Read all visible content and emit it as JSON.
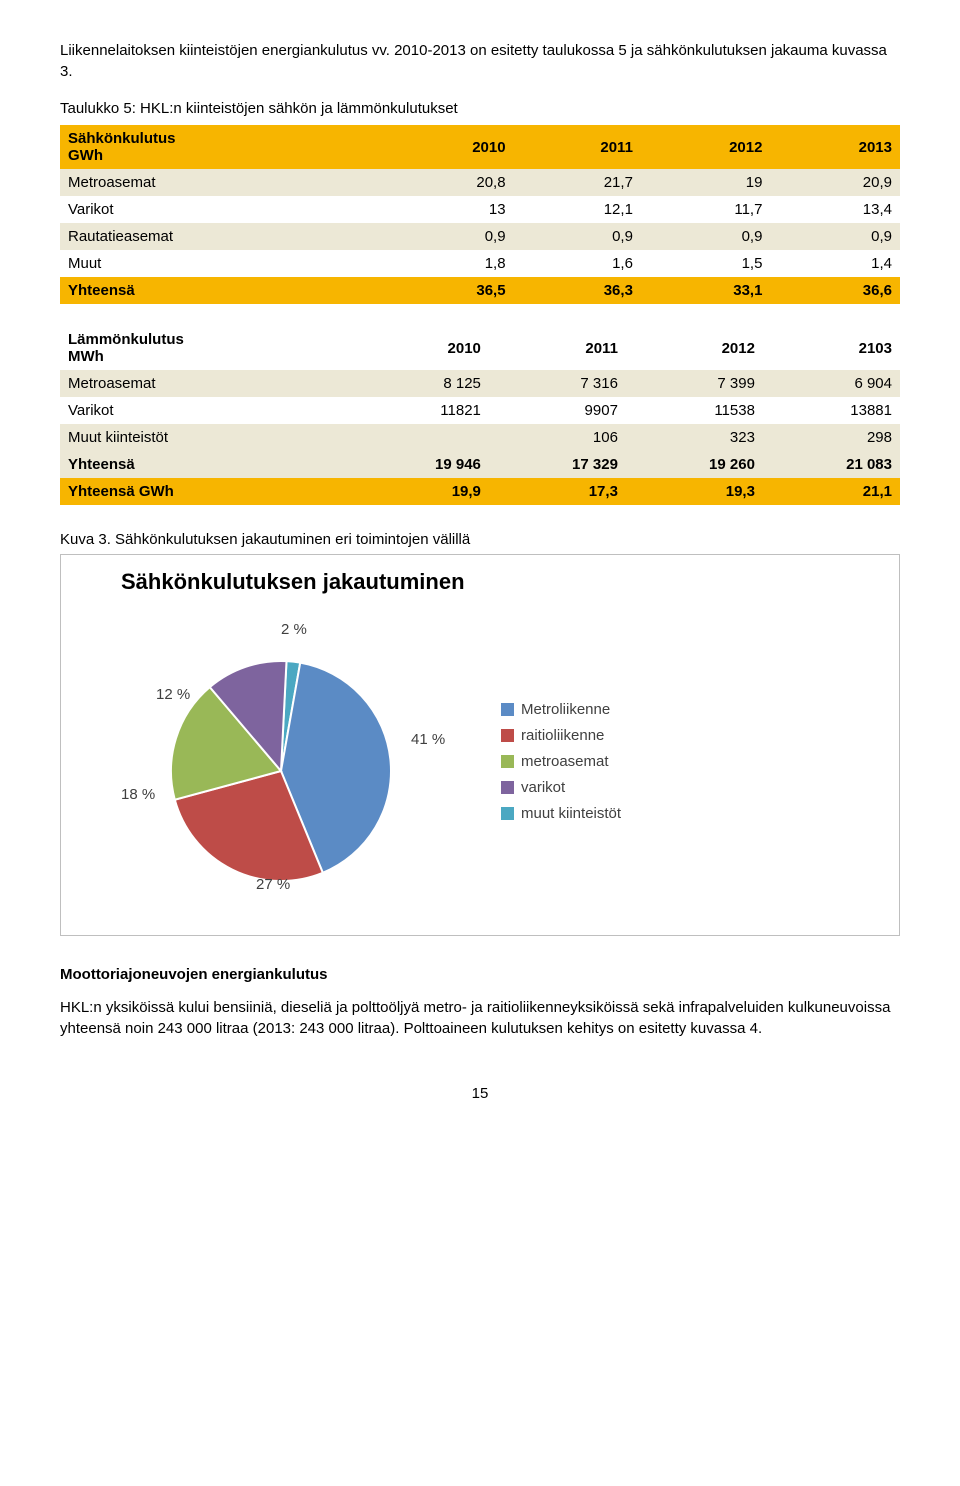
{
  "intro": "Liikennelaitoksen kiinteistöjen energiankulutus vv. 2010-2013 on esitetty taulukossa 5 ja sähkönkulutuksen jakauma kuvassa 3.",
  "table1": {
    "caption": "Taulukko 5: HKL:n kiinteistöjen sähkön ja lämmönkulutukset",
    "header": [
      "Sähkönkulutus\nGWh",
      "2010",
      "2011",
      "2012",
      "2013"
    ],
    "rows": [
      [
        "Metroasemat",
        "20,8",
        "21,7",
        "19",
        "20,9"
      ],
      [
        "Varikot",
        "13",
        "12,1",
        "11,7",
        "13,4"
      ],
      [
        "Rautatieasemat",
        "0,9",
        "0,9",
        "0,9",
        "0,9"
      ],
      [
        "Muut",
        "1,8",
        "1,6",
        "1,5",
        "1,4"
      ]
    ],
    "total": [
      "Yhteensä",
      "36,5",
      "36,3",
      "33,1",
      "36,6"
    ]
  },
  "table2": {
    "header": [
      "Lämmönkulutus\nMWh",
      "2010",
      "2011",
      "2012",
      "2103"
    ],
    "rows": [
      [
        "Metroasemat",
        "8 125",
        "7 316",
        "7 399",
        "6 904"
      ],
      [
        "Varikot",
        "11821",
        "9907",
        "11538",
        "13881"
      ],
      [
        "Muut kiinteistöt",
        "",
        "106",
        "323",
        "298"
      ]
    ],
    "subtotal": [
      "Yhteensä",
      "19 946",
      "17 329",
      "19 260",
      "21 083"
    ],
    "total": [
      "Yhteensä GWh",
      "19,9",
      "17,3",
      "19,3",
      "21,1"
    ]
  },
  "kuva_caption": "Kuva 3. Sähkönkulutuksen jakautuminen eri toimintojen välillä",
  "chart": {
    "title": "Sähkönkulutuksen jakautuminen",
    "slices": [
      {
        "label": "Metroliikenne",
        "pct": 41,
        "color": "#5b8bc5"
      },
      {
        "label": "raitioliikenne",
        "pct": 27,
        "color": "#be4c48"
      },
      {
        "label": "metroasemat",
        "pct": 18,
        "color": "#99b857"
      },
      {
        "label": "varikot",
        "pct": 12,
        "color": "#7e649e"
      },
      {
        "label": "muut kiinteistöt",
        "pct": 2,
        "color": "#4ba8c2"
      }
    ],
    "pct_labels": [
      "2 %",
      "41 %",
      "27 %",
      "18 %",
      "12 %"
    ]
  },
  "section_h": "Moottoriajoneuvojen energiankulutus",
  "body_text": "HKL:n yksiköissä kului bensiiniä, dieseliä ja polttoöljyä metro- ja raitioliikenneyksiköissä sekä infrapalveluiden kulkuneuvoissa yhteensä noin 243 000 litraa (2013: 243 000 litraa). Polttoaineen kulutuksen kehitys on esitetty kuvassa 4.",
  "page_num": "15"
}
